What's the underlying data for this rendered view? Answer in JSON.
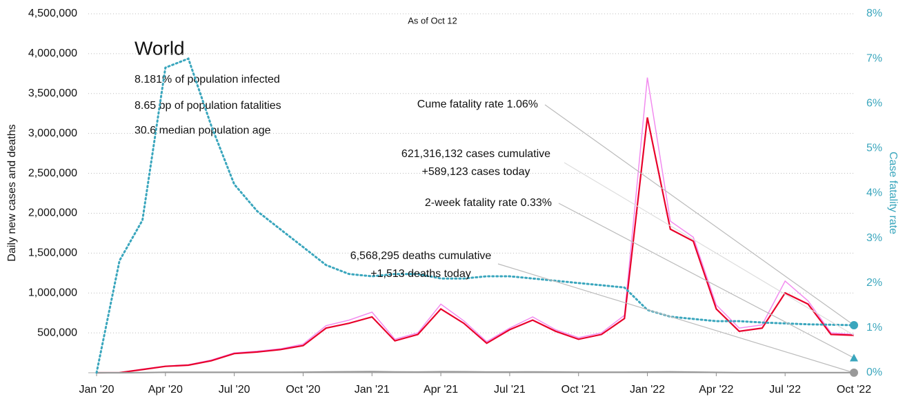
{
  "chart_data": {
    "type": "line",
    "subtitle": "As of Oct 12",
    "heading": "World",
    "stats": [
      "8.181% of population infected",
      "8.65 bp of population fatalities",
      "30.6 median population age"
    ],
    "ylabel": "Daily new cases and deaths",
    "y2label": "Case fatality rate",
    "x": [
      "2020-01",
      "2020-02",
      "2020-03",
      "2020-04",
      "2020-05",
      "2020-06",
      "2020-07",
      "2020-08",
      "2020-09",
      "2020-10",
      "2020-11",
      "2020-12",
      "2021-01",
      "2021-02",
      "2021-03",
      "2021-04",
      "2021-05",
      "2021-06",
      "2021-07",
      "2021-08",
      "2021-09",
      "2021-10",
      "2021-11",
      "2021-12",
      "2022-01",
      "2022-02",
      "2022-03",
      "2022-04",
      "2022-05",
      "2022-06",
      "2022-07",
      "2022-08",
      "2022-09",
      "2022-10"
    ],
    "series": [
      {
        "color": "#f28bef",
        "values": [
          0,
          2000,
          45000,
          85000,
          100000,
          160000,
          250000,
          270000,
          300000,
          360000,
          590000,
          660000,
          760000,
          420000,
          500000,
          860000,
          650000,
          390000,
          560000,
          700000,
          540000,
          440000,
          500000,
          720000,
          3700000,
          1900000,
          1700000,
          850000,
          560000,
          600000,
          1150000,
          900000,
          500000,
          480000
        ]
      },
      {
        "color": "#e8002a",
        "values": [
          0,
          2000,
          40000,
          80000,
          95000,
          150000,
          240000,
          260000,
          290000,
          340000,
          560000,
          620000,
          700000,
          400000,
          480000,
          800000,
          620000,
          370000,
          540000,
          660000,
          520000,
          420000,
          480000,
          680000,
          3200000,
          1800000,
          1650000,
          800000,
          520000,
          560000,
          1000000,
          860000,
          480000,
          470000
        ]
      },
      {
        "color": "#999999",
        "values": [
          0,
          100,
          2000,
          6000,
          5000,
          5000,
          6000,
          6000,
          6000,
          7000,
          10000,
          12000,
          14000,
          10000,
          9000,
          13000,
          12000,
          9000,
          9000,
          10000,
          9000,
          7000,
          7000,
          7000,
          9000,
          11000,
          8000,
          4000,
          2000,
          2000,
          2000,
          2000,
          1500,
          1500
        ]
      },
      {
        "color": "#3aa6bd",
        "axis": "y2",
        "values": [
          0,
          2.5,
          3.4,
          6.8,
          7.0,
          5.5,
          4.2,
          3.6,
          3.2,
          2.8,
          2.4,
          2.2,
          2.15,
          2.2,
          2.2,
          2.1,
          2.1,
          2.15,
          2.15,
          2.1,
          2.05,
          2.0,
          1.95,
          1.9,
          1.4,
          1.25,
          1.2,
          1.15,
          1.15,
          1.12,
          1.1,
          1.08,
          1.07,
          1.06
        ]
      }
    ],
    "end_markers": [
      {
        "label": "Cume fatality rate 1.06%",
        "value": 1.06,
        "color": "#3aa6bd",
        "shape": "circle"
      },
      {
        "label": "2-week fatality rate 0.33%",
        "value": 0.33,
        "color": "#3aa6bd",
        "shape": "triangle"
      }
    ],
    "annotations": [
      [
        "621,316,132 cases cumulative",
        "+589,123 cases today"
      ],
      [
        "6,568,295 deaths cumulative",
        "+1,513 deaths today"
      ]
    ],
    "ylim": [
      0,
      4500000
    ],
    "yticks": [
      {
        "value": 500000,
        "label": "500,000"
      },
      {
        "value": 1000000,
        "label": "1,000,000"
      },
      {
        "value": 1500000,
        "label": "1,500,000"
      },
      {
        "value": 2000000,
        "label": "2,000,000"
      },
      {
        "value": 2500000,
        "label": "2,500,000"
      },
      {
        "value": 3000000,
        "label": "3,000,000"
      },
      {
        "value": 3500000,
        "label": "3,500,000"
      },
      {
        "value": 4000000,
        "label": "4,000,000"
      },
      {
        "value": 4500000,
        "label": "4,500,000"
      }
    ],
    "y2lim": [
      0,
      8
    ],
    "y2ticks": [
      {
        "value": 0,
        "label": "0%"
      },
      {
        "value": 1,
        "label": "1%"
      },
      {
        "value": 2,
        "label": "2%"
      },
      {
        "value": 3,
        "label": "3%"
      },
      {
        "value": 4,
        "label": "4%"
      },
      {
        "value": 5,
        "label": "5%"
      },
      {
        "value": 6,
        "label": "6%"
      },
      {
        "value": 7,
        "label": "7%"
      },
      {
        "value": 8,
        "label": "8%"
      }
    ],
    "xticks": [
      {
        "value": "2020-01",
        "label": "Jan '20"
      },
      {
        "value": "2020-04",
        "label": "Apr '20"
      },
      {
        "value": "2020-07",
        "label": "Jul '20"
      },
      {
        "value": "2020-10",
        "label": "Oct '20"
      },
      {
        "value": "2021-01",
        "label": "Jan '21"
      },
      {
        "value": "2021-04",
        "label": "Apr '21"
      },
      {
        "value": "2021-07",
        "label": "Jul '21"
      },
      {
        "value": "2021-10",
        "label": "Oct '21"
      },
      {
        "value": "2022-01",
        "label": "Jan '22"
      },
      {
        "value": "2022-04",
        "label": "Apr '22"
      },
      {
        "value": "2022-07",
        "label": "Jul '22"
      },
      {
        "value": "2022-10",
        "label": "Oct '22"
      }
    ],
    "grid": true
  }
}
